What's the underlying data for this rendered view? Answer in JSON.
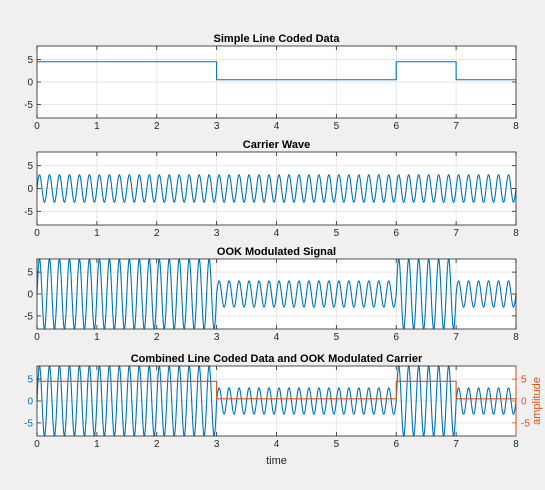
{
  "colors": {
    "series_blue": "#0072bd",
    "series_orange": "#d95319",
    "grid": "#e6e6e6",
    "axes": "#262626",
    "figure_background": "#f0f0f0",
    "plot_background": "#ffffff"
  },
  "chart_data": [
    {
      "type": "line",
      "title": "Simple Line Coded Data",
      "xlabel": "",
      "ylabel": "",
      "xlim": [
        0,
        8
      ],
      "ylim": [
        -8,
        8
      ],
      "xticks": [
        0,
        1,
        2,
        3,
        4,
        5,
        6,
        7,
        8
      ],
      "yticks": [
        -5,
        0,
        5
      ],
      "grid": true,
      "series": [
        {
          "kind": "step",
          "color": "#0072bd",
          "bits": [
            1,
            1,
            1,
            0,
            0,
            0,
            1,
            0
          ],
          "high": 4.5,
          "low": 0.5
        }
      ]
    },
    {
      "type": "line",
      "title": "Carrier Wave",
      "xlabel": "",
      "ylabel": "",
      "xlim": [
        0,
        8
      ],
      "ylim": [
        -8,
        8
      ],
      "xticks": [
        0,
        1,
        2,
        3,
        4,
        5,
        6,
        7,
        8
      ],
      "yticks": [
        -5,
        0,
        5
      ],
      "grid": true,
      "series": [
        {
          "kind": "sine",
          "color": "#0072bd",
          "amplitude": 3,
          "cycles_per_unit": 6
        }
      ]
    },
    {
      "type": "line",
      "title": "OOK Modulated Signal",
      "xlabel": "",
      "ylabel": "",
      "xlim": [
        0,
        8
      ],
      "ylim": [
        -8,
        8
      ],
      "xticks": [
        0,
        1,
        2,
        3,
        4,
        5,
        6,
        7,
        8
      ],
      "yticks": [
        -5,
        0,
        5
      ],
      "grid": true,
      "series": [
        {
          "kind": "modulated",
          "color": "#0072bd",
          "bits": [
            1,
            1,
            1,
            0,
            0,
            0,
            1,
            0
          ],
          "amplitude_high": 8,
          "amplitude_low": 3,
          "cycles_per_unit": 6
        }
      ]
    },
    {
      "type": "line",
      "title": "Combined Line Coded Data and OOK Modulated Carrier",
      "xlabel": "time",
      "ylabel": "",
      "ylabel_right": "amplitude",
      "xlim": [
        0,
        8
      ],
      "ylim": [
        -8,
        8
      ],
      "ylim_right": [
        -8,
        8
      ],
      "xticks": [
        0,
        1,
        2,
        3,
        4,
        5,
        6,
        7,
        8
      ],
      "yticks": [
        -5,
        0,
        5
      ],
      "yticks_right": [
        -5,
        0,
        5
      ],
      "grid": true,
      "series": [
        {
          "kind": "modulated",
          "axis": "left",
          "color": "#0072bd",
          "bits": [
            1,
            1,
            1,
            0,
            0,
            0,
            1,
            0
          ],
          "amplitude_high": 8,
          "amplitude_low": 3,
          "cycles_per_unit": 6
        },
        {
          "kind": "step",
          "axis": "right",
          "color": "#d95319",
          "bits": [
            1,
            1,
            1,
            0,
            0,
            0,
            1,
            0
          ],
          "high": 4.5,
          "low": 0.5
        }
      ]
    }
  ]
}
